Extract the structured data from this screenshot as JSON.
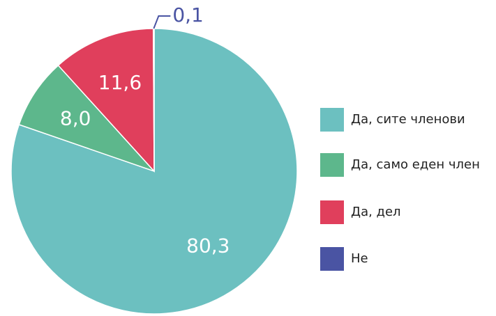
{
  "chart_data": {
    "type": "pie",
    "categories": [
      "Да, сите членови",
      "Да, само еден член",
      "Да, дел",
      "Не"
    ],
    "values": [
      80.3,
      8.0,
      11.6,
      0.1
    ],
    "value_labels": [
      "80,3",
      "8,0",
      "11,6",
      "0,1"
    ],
    "colors": [
      "#6cc0c0",
      "#5db78c",
      "#e03f5c",
      "#4a54a3"
    ],
    "legend": "right"
  }
}
